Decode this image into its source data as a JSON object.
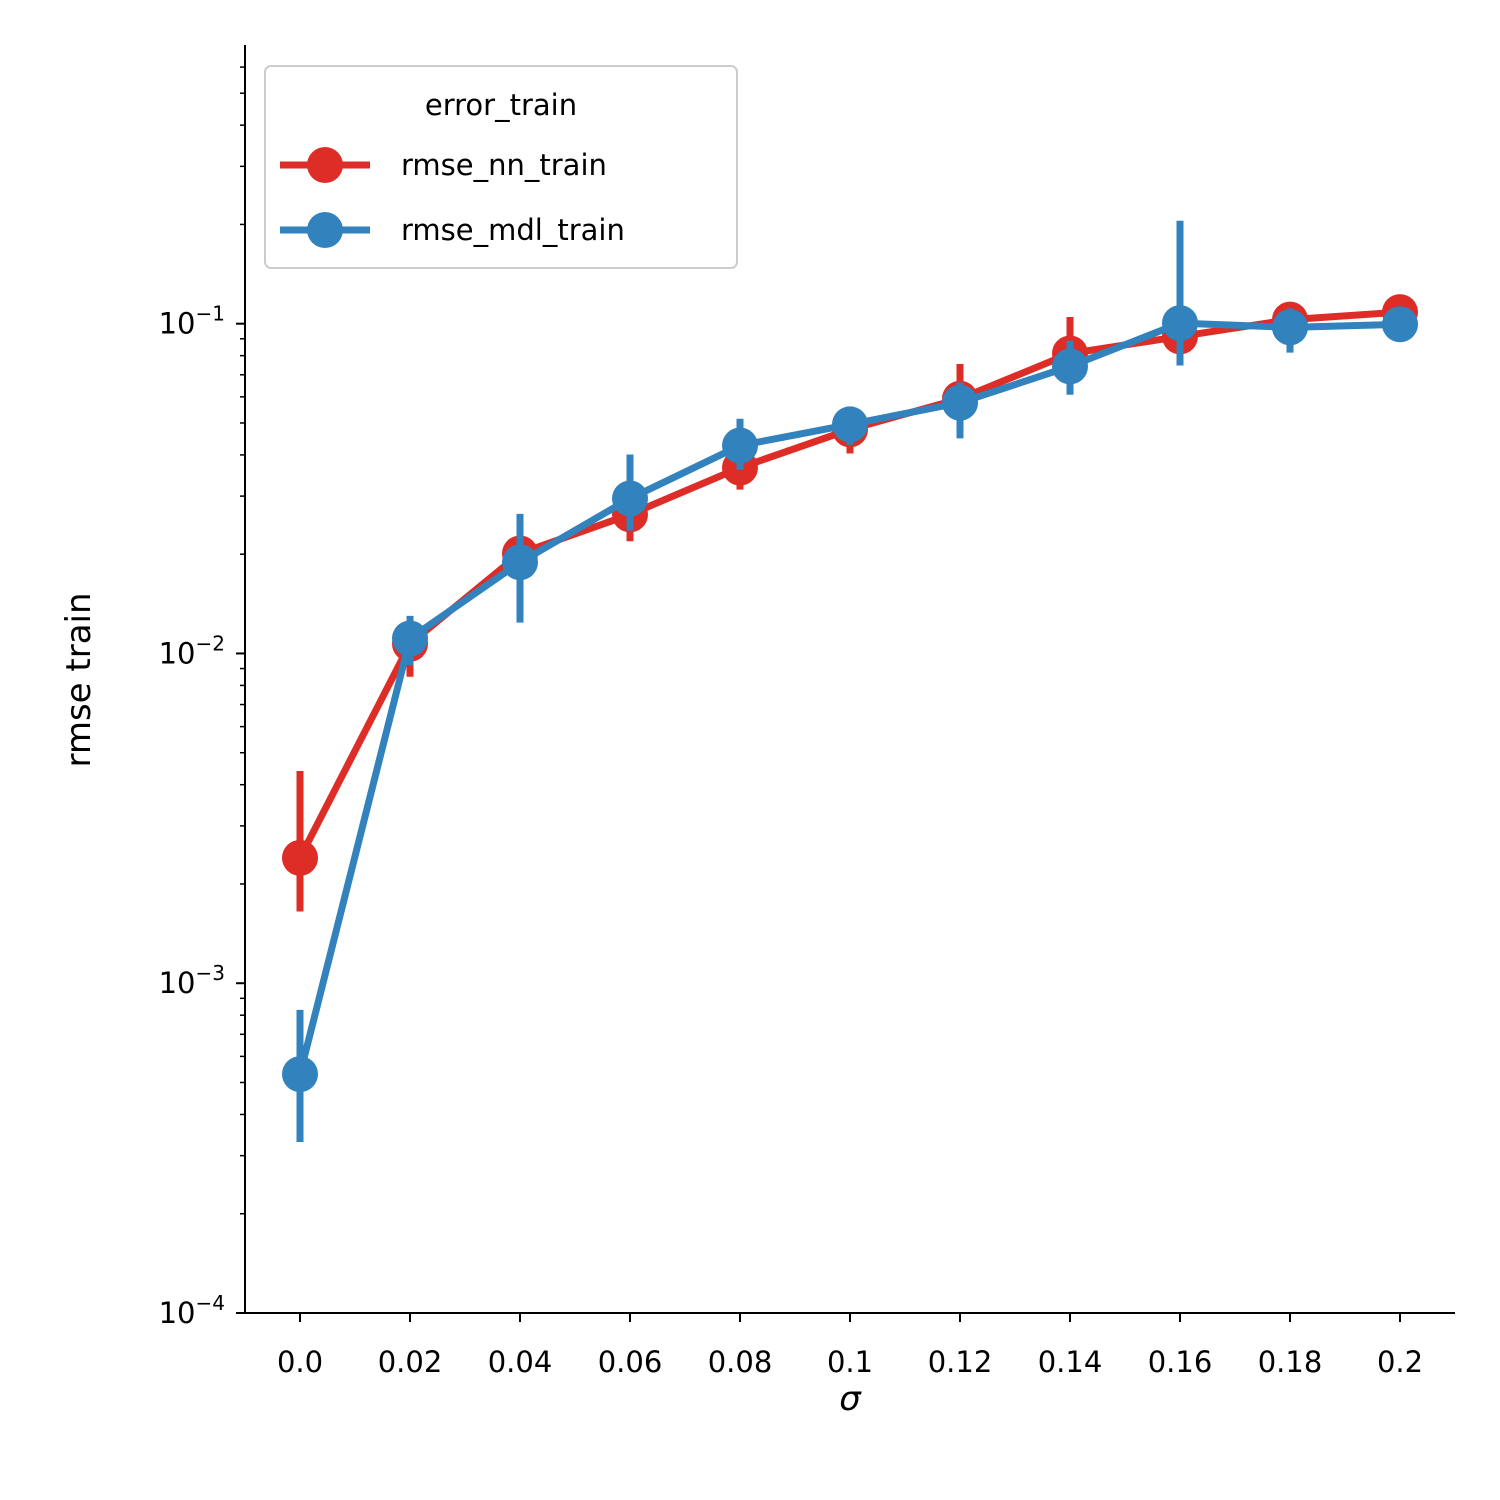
{
  "chart_data": {
    "type": "line",
    "xlabel": "σ",
    "ylabel": "rmse train",
    "yscale": "log",
    "ylim": [
      0.0001,
      0.7
    ],
    "categories": [
      "0.0",
      "0.02",
      "0.04",
      "0.06",
      "0.08",
      "0.1",
      "0.12",
      "0.14",
      "0.16",
      "0.18",
      "0.2"
    ],
    "y_ticks": [
      {
        "value": 0.0001,
        "base": "10",
        "exp": "−4"
      },
      {
        "value": 0.001,
        "base": "10",
        "exp": "−3"
      },
      {
        "value": 0.01,
        "base": "10",
        "exp": "−2"
      },
      {
        "value": 0.1,
        "base": "10",
        "exp": "−1"
      }
    ],
    "legend": {
      "title": "error_train",
      "position": "upper-left"
    },
    "grid": false,
    "series": [
      {
        "name": "rmse_nn_train",
        "color": "#de2d26",
        "values": [
          0.0024,
          0.0107,
          0.0201,
          0.0264,
          0.0366,
          0.0478,
          0.0592,
          0.0812,
          0.0915,
          0.1029,
          0.1084
        ],
        "err_low": [
          0.00165,
          0.0085,
          0.0168,
          0.0219,
          0.0314,
          0.0404,
          0.0496,
          0.0683,
          0.0782,
          0.0891,
          0.0956
        ],
        "err_high": [
          0.0044,
          0.0126,
          0.0234,
          0.0307,
          0.0426,
          0.0549,
          0.0755,
          0.1048,
          0.1062,
          0.1127,
          0.118
        ]
      },
      {
        "name": "rmse_mdl_train",
        "color": "#3182bd",
        "values": [
          0.00053,
          0.0111,
          0.0189,
          0.0295,
          0.0427,
          0.0495,
          0.0576,
          0.0742,
          0.1004,
          0.0975,
          0.0996
        ],
        "err_low": [
          0.00033,
          0.0092,
          0.0124,
          0.0236,
          0.0361,
          0.0429,
          0.0449,
          0.0609,
          0.0747,
          0.0817,
          0.0882
        ],
        "err_high": [
          0.00083,
          0.013,
          0.0265,
          0.0401,
          0.0515,
          0.0561,
          0.0663,
          0.0887,
          0.2051,
          0.1113,
          0.1115
        ]
      }
    ]
  }
}
